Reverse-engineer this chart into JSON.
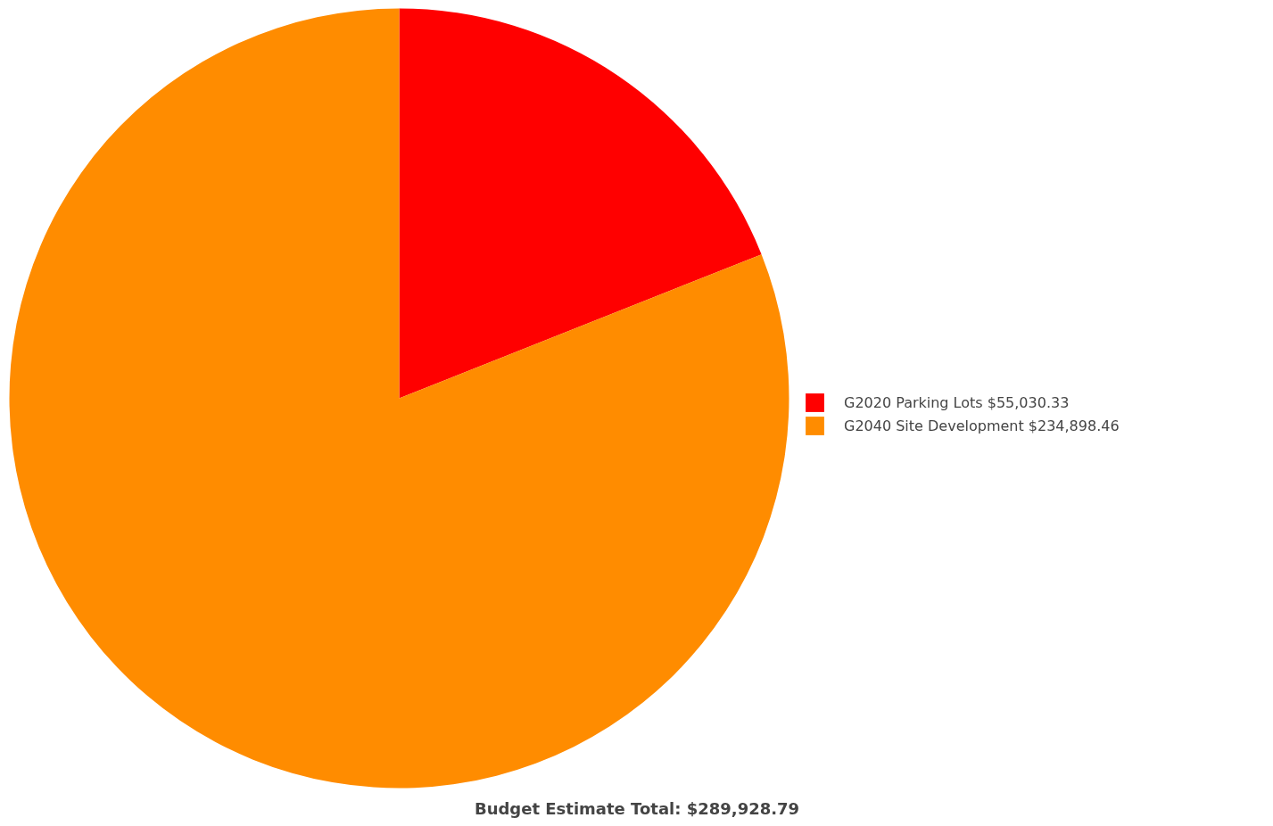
{
  "chart_data": {
    "type": "pie",
    "title": "Budget Estimate Total: $289,928.79",
    "categories": [
      "G2020 Parking Lots",
      "G2040 Site Development"
    ],
    "values": [
      55030.33,
      234898.46
    ],
    "value_labels": [
      "$55,030.33",
      "$234,898.46"
    ],
    "colors": [
      "#ff0000",
      "#ff8c00"
    ],
    "legend": "right"
  }
}
